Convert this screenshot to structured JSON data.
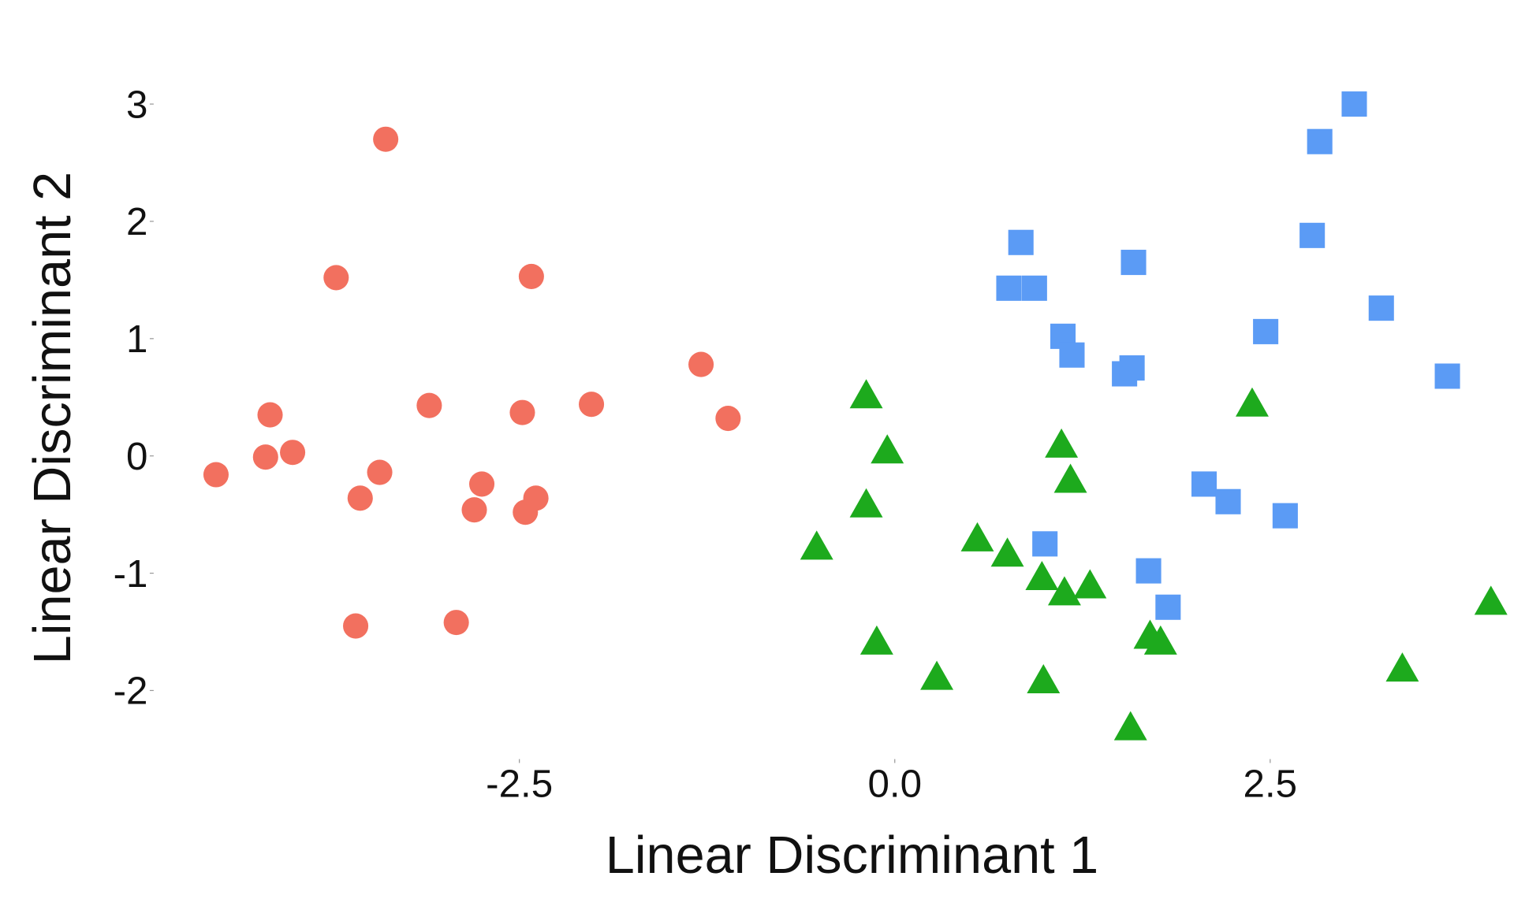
{
  "chart_data": {
    "type": "scatter",
    "title": "",
    "xlabel": "Linear Discriminant 1",
    "ylabel": "Linear Discriminant 2",
    "xticks": [
      -2.5,
      0.0,
      2.5
    ],
    "xtick_labels": [
      "-2.5",
      "0.0",
      "2.5"
    ],
    "yticks": [
      3,
      2,
      1,
      0,
      -1,
      -2
    ],
    "ytick_labels": [
      "3",
      "2",
      "1",
      "0",
      "-1",
      "-2"
    ],
    "xlim": [
      -5.0,
      4.2
    ],
    "ylim": [
      -2.5,
      3.3
    ],
    "grid": false,
    "legend": "none",
    "series": [
      {
        "name": "group-1",
        "marker": "circle",
        "color": "#F2705F",
        "points": [
          [
            -3.39,
            2.7
          ],
          [
            -3.72,
            1.52
          ],
          [
            -2.42,
            1.53
          ],
          [
            -1.29,
            0.78
          ],
          [
            -4.16,
            0.35
          ],
          [
            -3.1,
            0.43
          ],
          [
            -2.48,
            0.37
          ],
          [
            -2.02,
            0.44
          ],
          [
            -1.11,
            0.32
          ],
          [
            -4.52,
            -0.16
          ],
          [
            -4.19,
            -0.01
          ],
          [
            -4.01,
            0.03
          ],
          [
            -3.43,
            -0.14
          ],
          [
            -3.56,
            -0.36
          ],
          [
            -2.75,
            -0.24
          ],
          [
            -2.8,
            -0.46
          ],
          [
            -2.39,
            -0.36
          ],
          [
            -2.46,
            -0.48
          ],
          [
            -3.59,
            -1.45
          ],
          [
            -2.92,
            -1.42
          ]
        ]
      },
      {
        "name": "group-2",
        "marker": "square",
        "color": "#5B9BF5",
        "points": [
          [
            3.06,
            3.0
          ],
          [
            2.83,
            2.68
          ],
          [
            0.84,
            1.82
          ],
          [
            2.78,
            1.88
          ],
          [
            1.59,
            1.65
          ],
          [
            0.76,
            1.43
          ],
          [
            0.93,
            1.43
          ],
          [
            2.47,
            1.06
          ],
          [
            3.24,
            1.26
          ],
          [
            1.12,
            1.02
          ],
          [
            1.18,
            0.86
          ],
          [
            1.53,
            0.7
          ],
          [
            1.58,
            0.75
          ],
          [
            3.68,
            0.68
          ],
          [
            2.06,
            -0.24
          ],
          [
            2.22,
            -0.39
          ],
          [
            2.6,
            -0.51
          ],
          [
            1.0,
            -0.75
          ],
          [
            1.69,
            -0.98
          ],
          [
            1.82,
            -1.29
          ]
        ]
      },
      {
        "name": "group-3",
        "marker": "triangle",
        "color": "#1DAA1D",
        "points": [
          [
            -0.19,
            0.53
          ],
          [
            -0.05,
            0.06
          ],
          [
            2.38,
            0.46
          ],
          [
            1.11,
            0.11
          ],
          [
            1.17,
            -0.19
          ],
          [
            -0.19,
            -0.4
          ],
          [
            -0.52,
            -0.76
          ],
          [
            0.55,
            -0.69
          ],
          [
            0.75,
            -0.82
          ],
          [
            0.98,
            -1.02
          ],
          [
            1.13,
            -1.15
          ],
          [
            1.3,
            -1.09
          ],
          [
            3.97,
            -1.23
          ],
          [
            -0.12,
            -1.57
          ],
          [
            1.7,
            -1.52
          ],
          [
            1.77,
            -1.57
          ],
          [
            3.38,
            -1.8
          ],
          [
            0.28,
            -1.87
          ],
          [
            0.99,
            -1.9
          ],
          [
            1.57,
            -2.3
          ]
        ]
      }
    ]
  }
}
